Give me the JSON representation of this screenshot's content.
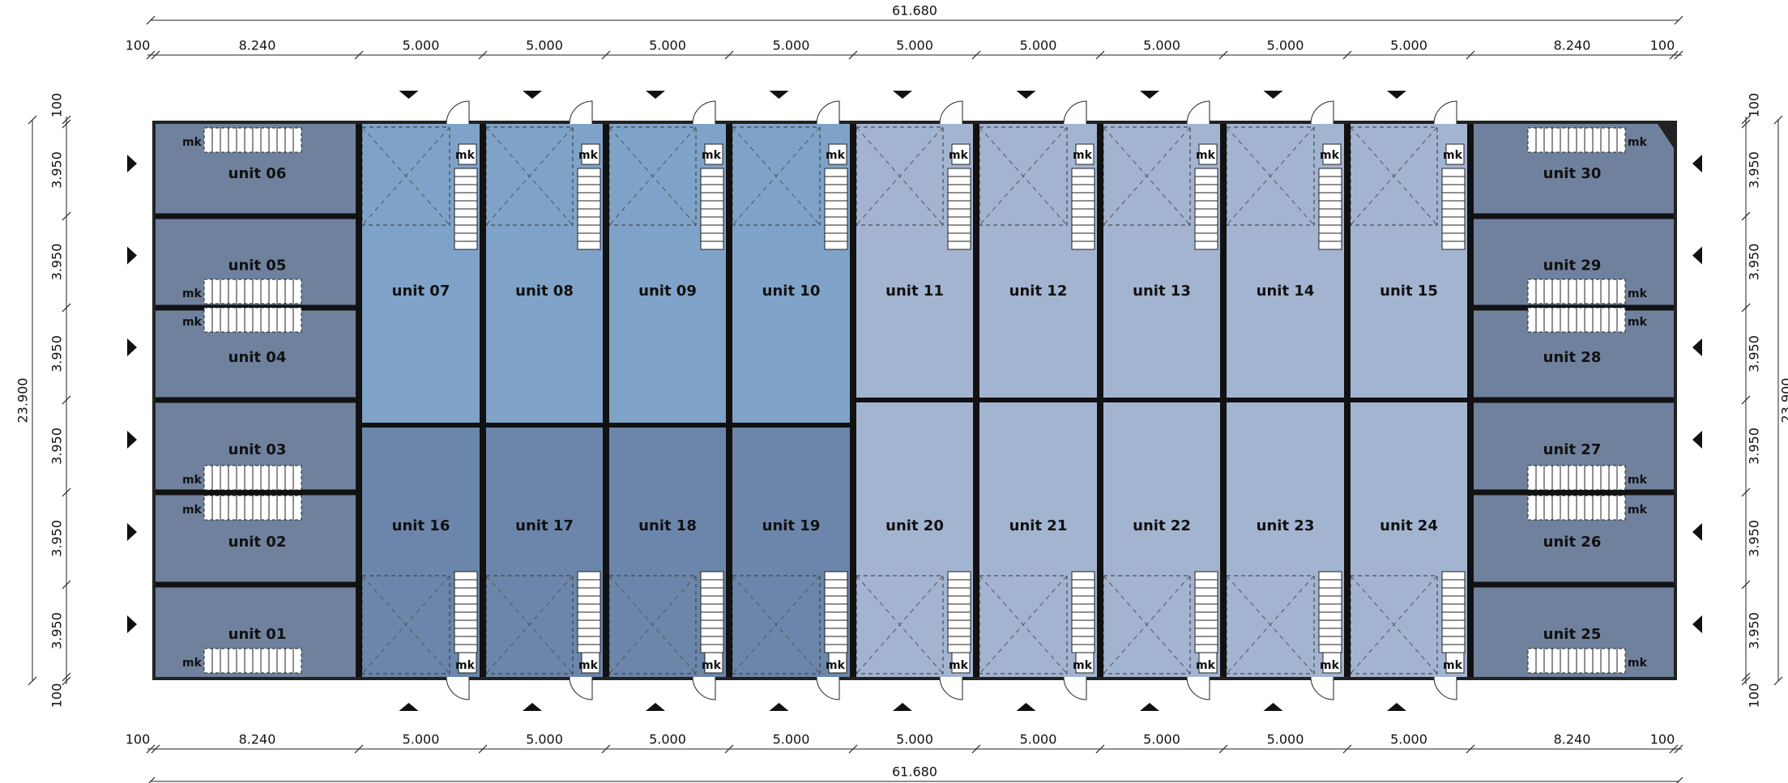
{
  "dimensions": {
    "top": {
      "total": "61.680",
      "segments": [
        "100",
        "8.240",
        "5.000",
        "5.000",
        "5.000",
        "5.000",
        "5.000",
        "5.000",
        "5.000",
        "5.000",
        "5.000",
        "8.240",
        "100"
      ]
    },
    "bottom": {
      "total": "61.680",
      "segments": [
        "100",
        "8.240",
        "5.000",
        "5.000",
        "5.000",
        "5.000",
        "5.000",
        "5.000",
        "5.000",
        "5.000",
        "5.000",
        "8.240",
        "100"
      ]
    },
    "left": {
      "total": "23.900",
      "segments": [
        "100",
        "3.950",
        "3.950",
        "3.950",
        "3.950",
        "3.950",
        "3.950",
        "100"
      ]
    },
    "right": {
      "total": "23.900",
      "segments": [
        "100",
        "3.950",
        "3.950",
        "3.950",
        "3.950",
        "3.950",
        "3.950",
        "100"
      ]
    }
  },
  "units": [
    "unit 01",
    "unit 02",
    "unit 03",
    "unit 04",
    "unit 05",
    "unit 06",
    "unit 07",
    "unit 08",
    "unit 09",
    "unit 10",
    "unit 11",
    "unit 12",
    "unit 13",
    "unit 14",
    "unit 15",
    "unit 16",
    "unit 17",
    "unit 18",
    "unit 19",
    "unit 20",
    "unit 21",
    "unit 22",
    "unit 23",
    "unit 24",
    "unit 25",
    "unit 26",
    "unit 27",
    "unit 28",
    "unit 29",
    "unit 30"
  ],
  "stair_label": "mk"
}
